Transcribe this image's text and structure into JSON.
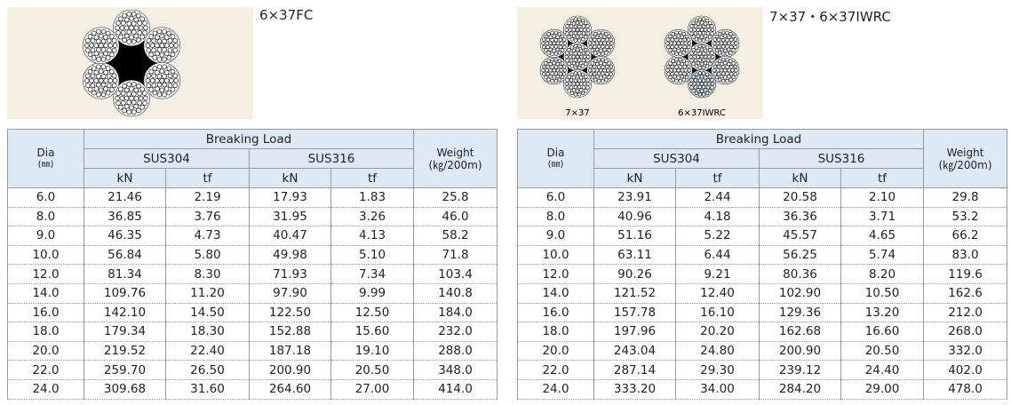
{
  "panels": [
    {
      "title": "6×37FC",
      "image_labels": [],
      "table": {
        "header": {
          "dia": "Dia",
          "dia_unit": "(㎜)",
          "breaking_load": "Breaking Load",
          "sus304": "SUS304",
          "sus316": "SUS316",
          "units": [
            "kN",
            "tf",
            "kN",
            "tf"
          ],
          "weight": "Weight",
          "weight_unit": "(㎏/200m)"
        },
        "rows": [
          [
            "6.0",
            "21.46",
            "2.19",
            "17.93",
            "1.83",
            "25.8"
          ],
          [
            "8.0",
            "36.85",
            "3.76",
            "31.95",
            "3.26",
            "46.0"
          ],
          [
            "9.0",
            "46.35",
            "4.73",
            "40.47",
            "4.13",
            "58.2"
          ],
          [
            "10.0",
            "56.84",
            "5.80",
            "49.98",
            "5.10",
            "71.8"
          ],
          [
            "12.0",
            "81.34",
            "8.30",
            "71.93",
            "7.34",
            "103.4"
          ],
          [
            "14.0",
            "109.76",
            "11.20",
            "97.90",
            "9.99",
            "140.8"
          ],
          [
            "16.0",
            "142.10",
            "14.50",
            "122.50",
            "12.50",
            "184.0"
          ],
          [
            "18.0",
            "179.34",
            "18.30",
            "152.88",
            "15.60",
            "232.0"
          ],
          [
            "20.0",
            "219.52",
            "22.40",
            "187.18",
            "19.10",
            "288.0"
          ],
          [
            "22.0",
            "259.70",
            "26.50",
            "200.90",
            "20.50",
            "348.0"
          ],
          [
            "24.0",
            "309.68",
            "31.60",
            "264.60",
            "27.00",
            "414.0"
          ]
        ]
      }
    },
    {
      "title": "7×37・6×37IWRC",
      "image_labels": [
        "7×37",
        "6×37IWRC"
      ],
      "table": {
        "header": {
          "dia": "Dia",
          "dia_unit": "(㎜)",
          "breaking_load": "Breaking Load",
          "sus304": "SUS304",
          "sus316": "SUS316",
          "units": [
            "kN",
            "tf",
            "kN",
            "tf"
          ],
          "weight": "Weight",
          "weight_unit": "(㎏/200m)"
        },
        "rows": [
          [
            "6.0",
            "23.91",
            "2.44",
            "20.58",
            "2.10",
            "29.8"
          ],
          [
            "8.0",
            "40.96",
            "4.18",
            "36.36",
            "3.71",
            "53.2"
          ],
          [
            "9.0",
            "51.16",
            "5.22",
            "45.57",
            "4.65",
            "66.2"
          ],
          [
            "10.0",
            "63.11",
            "6.44",
            "56.25",
            "5.74",
            "83.0"
          ],
          [
            "12.0",
            "90.26",
            "9.21",
            "80.36",
            "8.20",
            "119.6"
          ],
          [
            "14.0",
            "121.52",
            "12.40",
            "102.90",
            "10.50",
            "162.6"
          ],
          [
            "16.0",
            "157.78",
            "16.10",
            "129.36",
            "13.20",
            "212.0"
          ],
          [
            "18.0",
            "197.96",
            "20.20",
            "162.68",
            "16.60",
            "268.0"
          ],
          [
            "20.0",
            "243.04",
            "24.80",
            "200.90",
            "20.50",
            "332.0"
          ],
          [
            "22.0",
            "287.14",
            "29.30",
            "239.12",
            "24.40",
            "402.0"
          ],
          [
            "24.0",
            "333.20",
            "34.00",
            "284.20",
            "29.00",
            "478.0"
          ]
        ]
      }
    }
  ]
}
